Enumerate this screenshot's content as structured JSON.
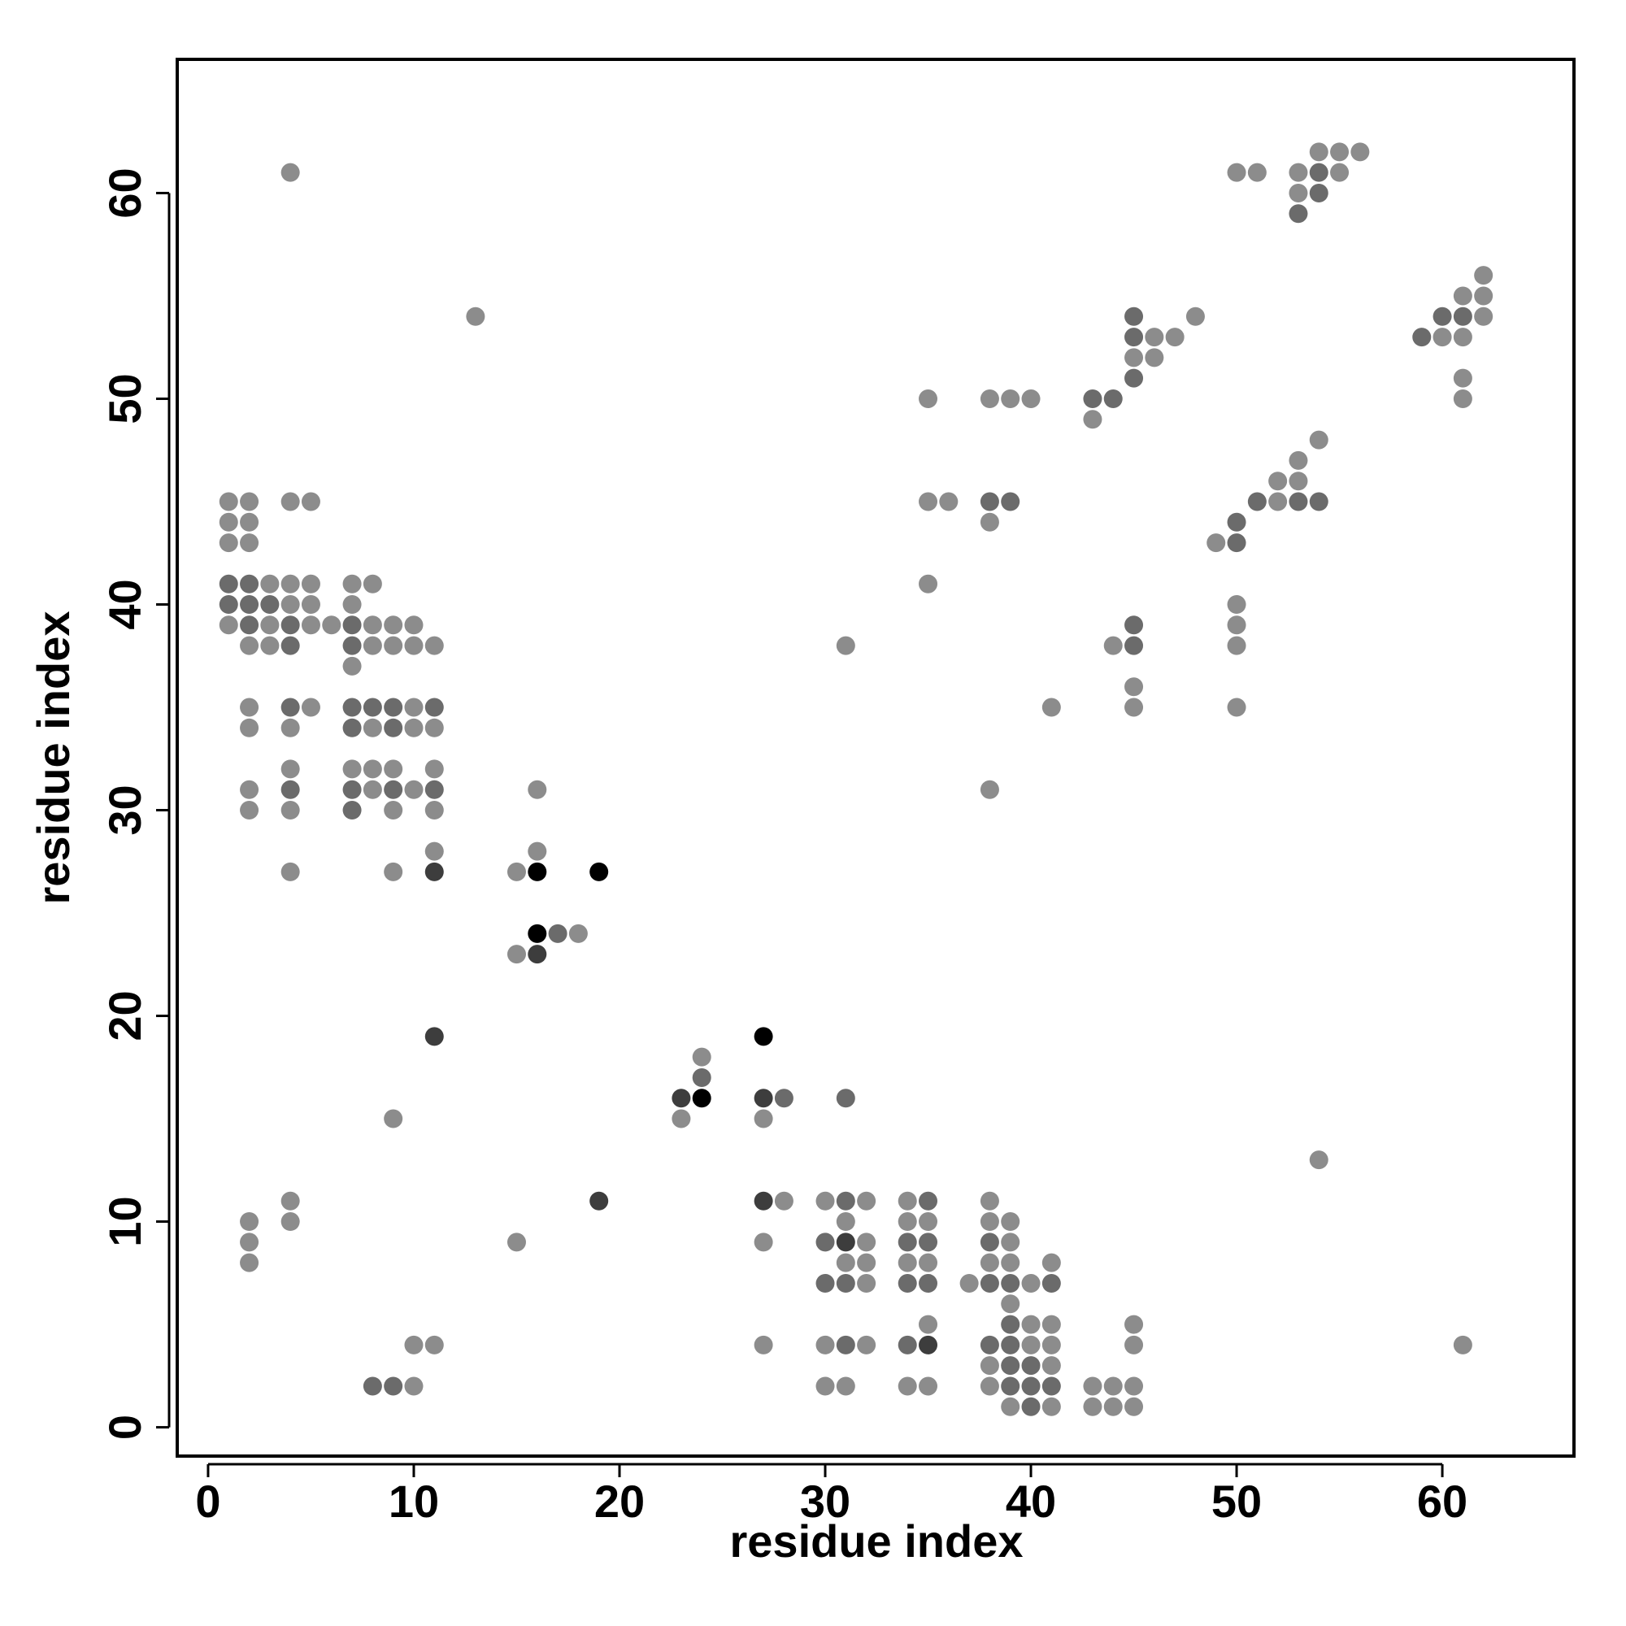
{
  "chart_data": {
    "type": "scatter",
    "x_label": "residue index",
    "y_label": "residue index",
    "xlim": [
      -1.5,
      66.4
    ],
    "ylim": [
      -1.4,
      66.5
    ],
    "xticks": [
      0,
      10,
      20,
      30,
      40,
      50,
      60
    ],
    "yticks": [
      0,
      10,
      20,
      30,
      40,
      50,
      60
    ],
    "series": [
      {
        "color": "#8c8c8c",
        "x": [
          1,
          1,
          1,
          1,
          2,
          2,
          2,
          2,
          2,
          2,
          2,
          2,
          2,
          2,
          2,
          3,
          3,
          3,
          4,
          4,
          4,
          4,
          4,
          4,
          4,
          4,
          4,
          4,
          5,
          5,
          5,
          5,
          5,
          6,
          7,
          7,
          7,
          7,
          8,
          8,
          8,
          8,
          8,
          8,
          9,
          9,
          9,
          9,
          9,
          9,
          10,
          10,
          10,
          10,
          10,
          10,
          10,
          11,
          11,
          11,
          11,
          11,
          11,
          13,
          15,
          15,
          15,
          16,
          16,
          18,
          23,
          24,
          27,
          27,
          27,
          28,
          30,
          30,
          30,
          31,
          31,
          31,
          31,
          32,
          32,
          32,
          32,
          32,
          34,
          34,
          34,
          34,
          35,
          35,
          35,
          35,
          35,
          35,
          35,
          36,
          37,
          38,
          38,
          38,
          38,
          38,
          38,
          38,
          38,
          39,
          39,
          39,
          39,
          39,
          39,
          40,
          40,
          40,
          40,
          41,
          41,
          41,
          41,
          41,
          41,
          43,
          43,
          43,
          44,
          44,
          44,
          45,
          45,
          45,
          45,
          45,
          45,
          45,
          46,
          46,
          47,
          48,
          49,
          50,
          50,
          50,
          50,
          50,
          51,
          52,
          52,
          53,
          53,
          53,
          53,
          54,
          54,
          54,
          55,
          55,
          56,
          60,
          61,
          61,
          61,
          61,
          61,
          62,
          62,
          62
        ],
        "y": [
          45,
          44,
          43,
          39,
          45,
          44,
          43,
          38,
          35,
          34,
          31,
          30,
          10,
          9,
          8,
          41,
          39,
          38,
          61,
          45,
          41,
          40,
          34,
          32,
          30,
          27,
          11,
          10,
          45,
          41,
          40,
          39,
          35,
          39,
          41,
          40,
          37,
          32,
          41,
          39,
          38,
          34,
          32,
          31,
          39,
          38,
          32,
          30,
          27,
          15,
          39,
          38,
          35,
          34,
          31,
          4,
          2,
          38,
          34,
          32,
          30,
          28,
          4,
          54,
          27,
          23,
          9,
          31,
          28,
          24,
          15,
          18,
          15,
          9,
          4,
          11,
          11,
          4,
          2,
          38,
          10,
          8,
          2,
          11,
          9,
          8,
          7,
          4,
          11,
          10,
          8,
          2,
          50,
          45,
          41,
          10,
          8,
          5,
          2,
          45,
          7,
          50,
          44,
          31,
          11,
          10,
          8,
          3,
          2,
          50,
          10,
          9,
          8,
          6,
          1,
          50,
          7,
          5,
          4,
          35,
          8,
          5,
          4,
          3,
          1,
          49,
          2,
          1,
          38,
          2,
          1,
          52,
          36,
          35,
          5,
          4,
          2,
          1,
          53,
          52,
          53,
          54,
          43,
          61,
          40,
          39,
          38,
          35,
          61,
          46,
          45,
          61,
          60,
          47,
          46,
          62,
          48,
          13,
          62,
          61,
          62,
          53,
          55,
          53,
          51,
          50,
          4,
          56,
          55,
          54
        ]
      },
      {
        "color": "#6b6b6b",
        "x": [
          1,
          1,
          2,
          2,
          2,
          3,
          4,
          4,
          4,
          4,
          7,
          7,
          7,
          7,
          7,
          7,
          8,
          8,
          9,
          9,
          9,
          9,
          11,
          11,
          17,
          24,
          28,
          30,
          30,
          31,
          31,
          31,
          31,
          34,
          34,
          34,
          35,
          35,
          35,
          38,
          38,
          38,
          38,
          39,
          39,
          39,
          39,
          39,
          39,
          40,
          40,
          40,
          41,
          41,
          43,
          44,
          45,
          45,
          45,
          45,
          45,
          50,
          50,
          51,
          53,
          53,
          54,
          54,
          54,
          59,
          60,
          61
        ],
        "y": [
          41,
          40,
          41,
          40,
          39,
          40,
          39,
          38,
          35,
          31,
          39,
          38,
          35,
          34,
          31,
          30,
          35,
          2,
          35,
          34,
          31,
          2,
          35,
          31,
          24,
          17,
          16,
          9,
          7,
          16,
          11,
          7,
          4,
          9,
          7,
          4,
          11,
          9,
          7,
          45,
          9,
          7,
          4,
          45,
          7,
          5,
          4,
          3,
          2,
          3,
          2,
          1,
          7,
          2,
          50,
          50,
          54,
          53,
          51,
          39,
          38,
          44,
          43,
          45,
          59,
          45,
          61,
          60,
          45,
          53,
          54,
          54
        ]
      },
      {
        "color": "#3d3d3d",
        "x": [
          11,
          11,
          16,
          19,
          23,
          27,
          27,
          31,
          35
        ],
        "y": [
          27,
          19,
          23,
          11,
          16,
          16,
          11,
          9,
          4
        ]
      },
      {
        "color": "#000000",
        "x": [
          16,
          16,
          19,
          24,
          27
        ],
        "y": [
          27,
          24,
          27,
          16,
          19
        ]
      }
    ]
  }
}
